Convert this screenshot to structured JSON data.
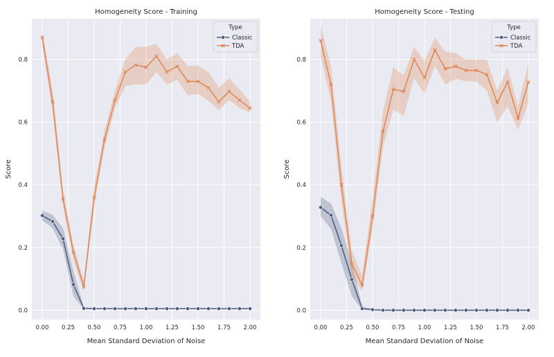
{
  "chart_data": [
    {
      "type": "line",
      "title": "Homogeneity Score - Training",
      "xlabel": "Mean Standard Deviation of Noise",
      "ylabel": "Score",
      "xlim": [
        -0.1,
        2.1
      ],
      "ylim": [
        -0.03,
        0.93
      ],
      "xticks": [
        0.0,
        0.25,
        0.5,
        0.75,
        1.0,
        1.25,
        1.5,
        1.75,
        2.0
      ],
      "xtick_labels": [
        "0.00",
        "0.25",
        "0.50",
        "0.75",
        "1.00",
        "1.25",
        "1.50",
        "1.75",
        "2.00"
      ],
      "yticks": [
        0.0,
        0.2,
        0.4,
        0.6,
        0.8
      ],
      "ytick_labels": [
        "0.0",
        "0.2",
        "0.4",
        "0.6",
        "0.8"
      ],
      "grid": true,
      "legend": {
        "title": "Type",
        "placement": "top-right"
      },
      "x": [
        0.0,
        0.1,
        0.2,
        0.3,
        0.4,
        0.5,
        0.6,
        0.7,
        0.8,
        0.9,
        1.0,
        1.1,
        1.2,
        1.3,
        1.4,
        1.5,
        1.6,
        1.7,
        1.8,
        1.9,
        2.0
      ],
      "series": [
        {
          "name": "Classic",
          "color": "#4c5a7d",
          "marker": "circle",
          "values": [
            0.302,
            0.283,
            0.228,
            0.082,
            0.006,
            0.005,
            0.005,
            0.005,
            0.005,
            0.005,
            0.005,
            0.005,
            0.005,
            0.005,
            0.005,
            0.005,
            0.005,
            0.005,
            0.005,
            0.005,
            0.005
          ],
          "lower": [
            0.286,
            0.262,
            0.195,
            0.045,
            0.003,
            0.004,
            0.004,
            0.004,
            0.004,
            0.004,
            0.004,
            0.004,
            0.004,
            0.004,
            0.004,
            0.004,
            0.004,
            0.004,
            0.004,
            0.004,
            0.004
          ],
          "upper": [
            0.318,
            0.304,
            0.262,
            0.125,
            0.01,
            0.006,
            0.006,
            0.006,
            0.006,
            0.006,
            0.006,
            0.006,
            0.006,
            0.006,
            0.006,
            0.006,
            0.006,
            0.006,
            0.006,
            0.006,
            0.006
          ]
        },
        {
          "name": "TDA",
          "color": "#dd8452",
          "marker": "x",
          "values": [
            0.87,
            0.665,
            0.355,
            0.185,
            0.075,
            0.36,
            0.545,
            0.67,
            0.76,
            0.782,
            0.775,
            0.81,
            0.76,
            0.778,
            0.73,
            0.73,
            0.71,
            0.665,
            0.698,
            0.67,
            0.645
          ],
          "lower": [
            0.845,
            0.63,
            0.33,
            0.16,
            0.06,
            0.33,
            0.52,
            0.645,
            0.715,
            0.72,
            0.72,
            0.76,
            0.72,
            0.735,
            0.685,
            0.69,
            0.668,
            0.638,
            0.67,
            0.645,
            0.63
          ],
          "upper": [
            0.895,
            0.7,
            0.385,
            0.21,
            0.095,
            0.395,
            0.575,
            0.7,
            0.8,
            0.84,
            0.84,
            0.85,
            0.8,
            0.82,
            0.78,
            0.78,
            0.76,
            0.71,
            0.74,
            0.705,
            0.665
          ]
        }
      ]
    },
    {
      "type": "line",
      "title": "Homogeneity Score - Testing",
      "xlabel": "Mean Standard Deviation of Noise",
      "ylabel": "Score",
      "xlim": [
        -0.1,
        2.1
      ],
      "ylim": [
        -0.03,
        0.93
      ],
      "xticks": [
        0.0,
        0.25,
        0.5,
        0.75,
        1.0,
        1.25,
        1.5,
        1.75,
        2.0
      ],
      "xtick_labels": [
        "0.00",
        "0.25",
        "0.50",
        "0.75",
        "1.00",
        "1.25",
        "1.50",
        "1.75",
        "2.00"
      ],
      "yticks": [
        0.0,
        0.2,
        0.4,
        0.6,
        0.8
      ],
      "ytick_labels": [
        "0.0",
        "0.2",
        "0.4",
        "0.6",
        "0.8"
      ],
      "grid": true,
      "legend": {
        "title": "Type",
        "placement": "top-right"
      },
      "x": [
        0.0,
        0.1,
        0.2,
        0.3,
        0.4,
        0.5,
        0.6,
        0.7,
        0.8,
        0.9,
        1.0,
        1.1,
        1.2,
        1.3,
        1.4,
        1.5,
        1.6,
        1.7,
        1.8,
        1.9,
        2.0
      ],
      "series": [
        {
          "name": "Classic",
          "color": "#4c5a7d",
          "marker": "circle",
          "values": [
            0.328,
            0.303,
            0.207,
            0.098,
            0.005,
            0.002,
            0.0,
            0.0,
            0.0,
            0.0,
            0.0,
            0.0,
            0.0,
            0.0,
            0.0,
            0.0,
            0.0,
            0.0,
            0.0,
            0.0,
            0.0
          ],
          "lower": [
            0.3,
            0.26,
            0.15,
            0.045,
            0.001,
            0.0,
            -0.002,
            -0.002,
            -0.002,
            -0.002,
            -0.002,
            -0.002,
            -0.002,
            -0.002,
            -0.002,
            -0.002,
            -0.002,
            -0.002,
            -0.002,
            -0.002,
            -0.002
          ],
          "upper": [
            0.362,
            0.34,
            0.262,
            0.152,
            0.012,
            0.004,
            0.002,
            0.002,
            0.002,
            0.002,
            0.002,
            0.002,
            0.002,
            0.002,
            0.002,
            0.002,
            0.002,
            0.002,
            0.002,
            0.002,
            0.002
          ]
        },
        {
          "name": "TDA",
          "color": "#dd8452",
          "marker": "x",
          "values": [
            0.86,
            0.72,
            0.4,
            0.148,
            0.08,
            0.3,
            0.57,
            0.705,
            0.698,
            0.8,
            0.742,
            0.83,
            0.77,
            0.778,
            0.765,
            0.765,
            0.752,
            0.662,
            0.728,
            0.612,
            0.728
          ],
          "lower": [
            0.81,
            0.665,
            0.345,
            0.11,
            0.06,
            0.255,
            0.52,
            0.64,
            0.62,
            0.74,
            0.69,
            0.78,
            0.72,
            0.738,
            0.73,
            0.73,
            0.7,
            0.6,
            0.65,
            0.575,
            0.66
          ],
          "upper": [
            0.91,
            0.78,
            0.46,
            0.19,
            0.11,
            0.36,
            0.635,
            0.775,
            0.75,
            0.84,
            0.795,
            0.87,
            0.825,
            0.82,
            0.8,
            0.8,
            0.8,
            0.7,
            0.775,
            0.65,
            0.79
          ]
        }
      ]
    }
  ]
}
